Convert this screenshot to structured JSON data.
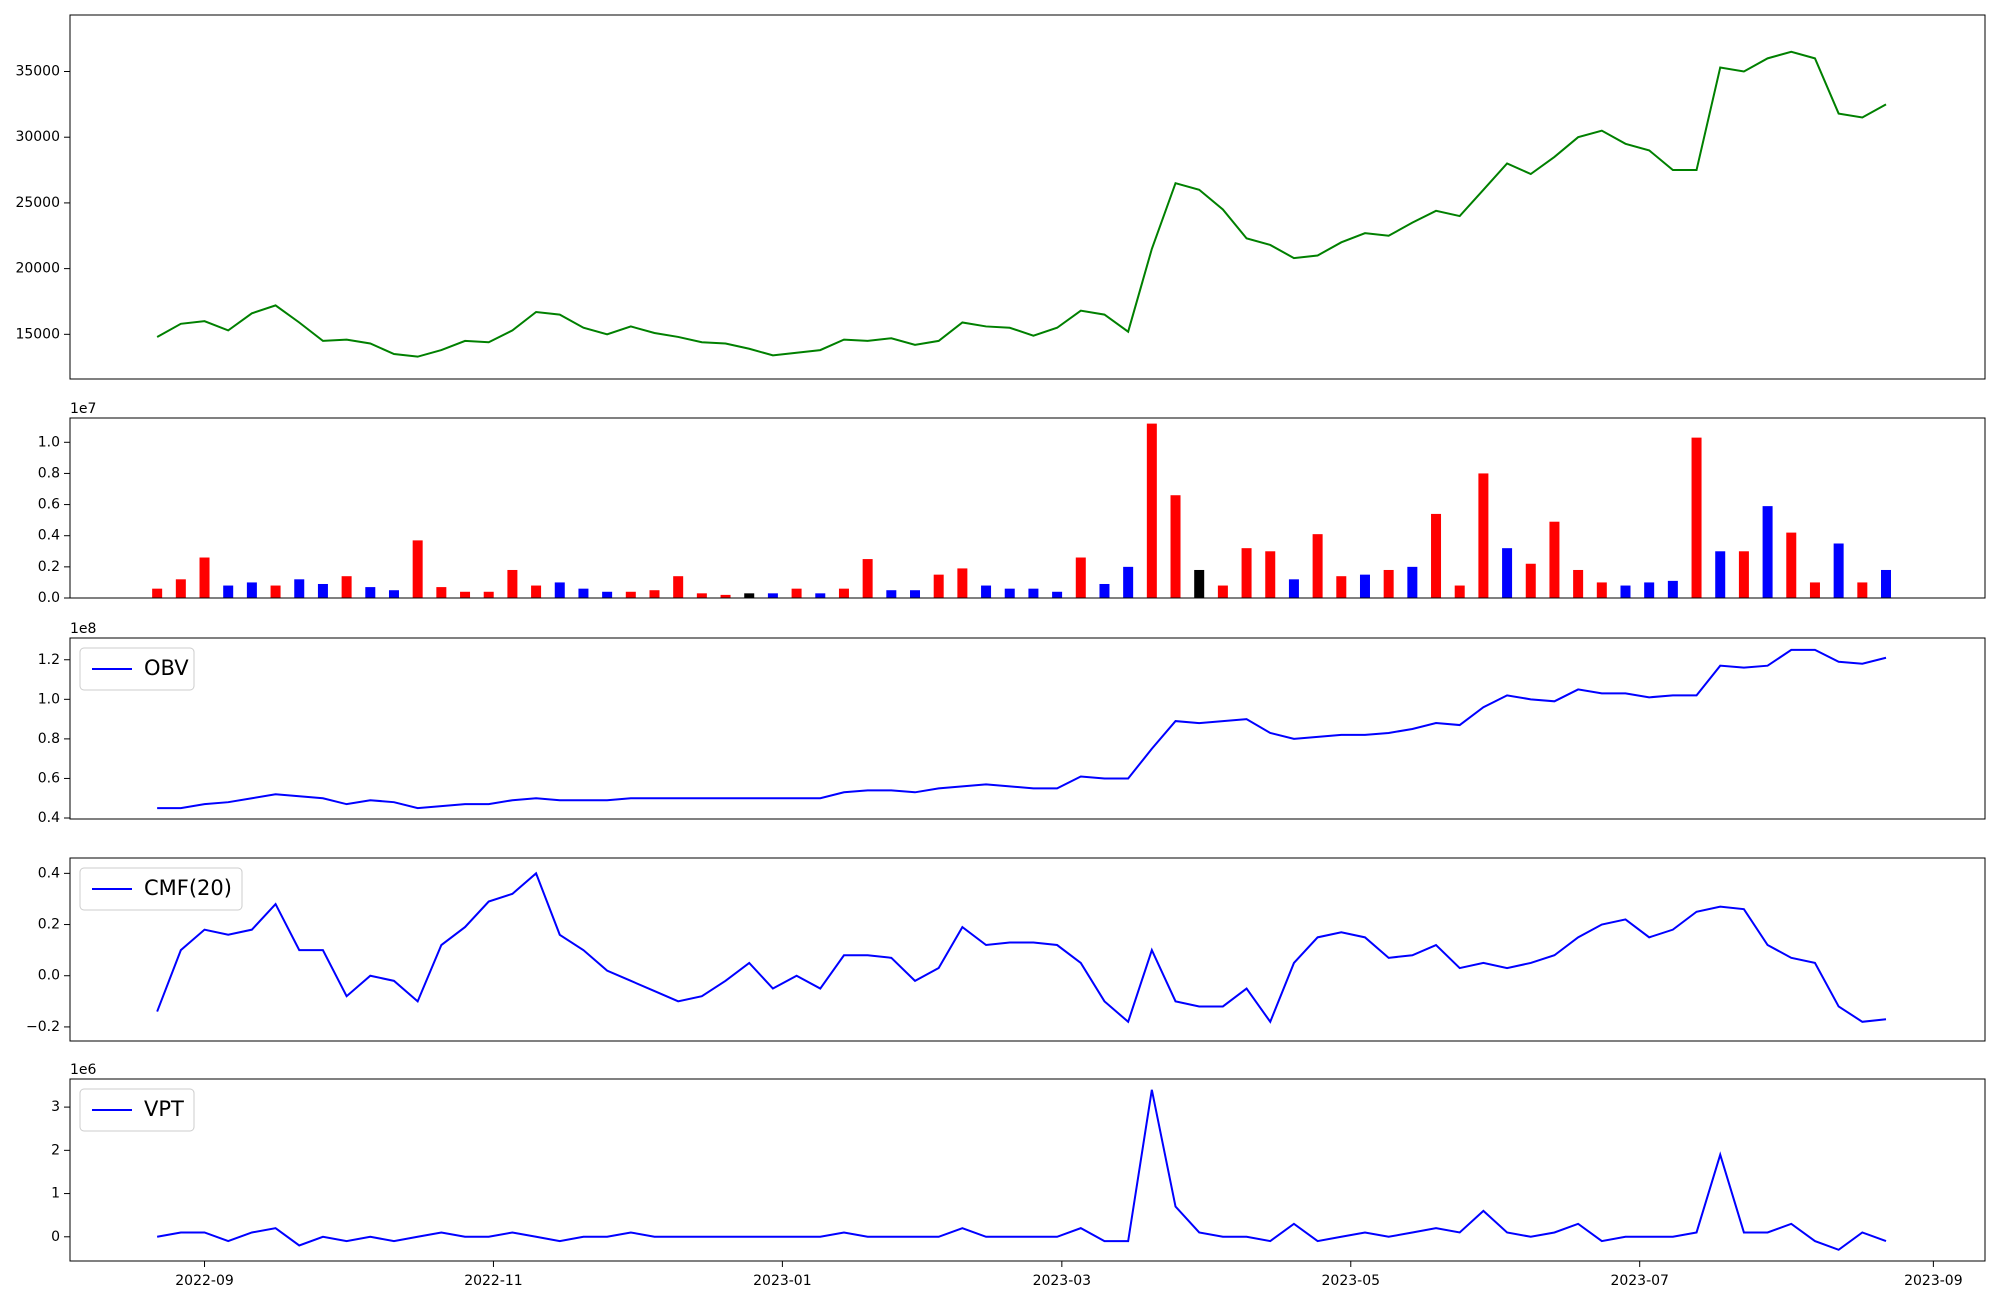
{
  "chart_data": [
    {
      "type": "line",
      "x": [
        19226,
        19231,
        19236,
        19241,
        19246,
        19251,
        19256,
        19261,
        19266,
        19271,
        19276,
        19281,
        19286,
        19291,
        19296,
        19301,
        19306,
        19311,
        19316,
        19321,
        19326,
        19331,
        19336,
        19341,
        19346,
        19351,
        19356,
        19361,
        19366,
        19371,
        19376,
        19381,
        19386,
        19391,
        19396,
        19401,
        19406,
        19411,
        19416,
        19421,
        19426,
        19431,
        19436,
        19441,
        19446,
        19451,
        19456,
        19461,
        19466,
        19471,
        19476,
        19481,
        19486,
        19491,
        19496,
        19501,
        19506,
        19511,
        19516,
        19521,
        19526,
        19531,
        19536,
        19541,
        19546,
        19551,
        19556,
        19561,
        19566,
        19571,
        19576,
        19581,
        19586,
        19591
      ],
      "values": [
        14800,
        15800,
        16000,
        15300,
        16600,
        17200,
        15900,
        14500,
        14600,
        14300,
        13500,
        13300,
        13800,
        14500,
        14400,
        15300,
        16700,
        16500,
        15500,
        15000,
        15600,
        15100,
        14800,
        14400,
        14300,
        13900,
        13400,
        13600,
        13800,
        14600,
        14500,
        14700,
        14200,
        14500,
        15900,
        15600,
        15500,
        14900,
        15500,
        16800,
        16500,
        15200,
        21500,
        26500,
        26000,
        24500,
        22300,
        21800,
        20800,
        21000,
        22000,
        22700,
        22500,
        23500,
        24400,
        24000,
        26000,
        28000,
        27200,
        28500,
        30000,
        30500,
        29500,
        29000,
        27500,
        27500,
        35300,
        35000,
        36000,
        36500,
        36000,
        31800,
        31500,
        32500
      ],
      "color": "green",
      "xlim": [
        19207.6,
        19611.9
      ],
      "ylim": [
        11600,
        39300
      ],
      "yticks": [
        15000,
        20000,
        25000,
        30000,
        35000
      ]
    },
    {
      "type": "bar",
      "x": [
        19226,
        19231,
        19236,
        19241,
        19246,
        19251,
        19256,
        19261,
        19266,
        19271,
        19276,
        19281,
        19286,
        19291,
        19296,
        19301,
        19306,
        19311,
        19316,
        19321,
        19326,
        19331,
        19336,
        19341,
        19346,
        19351,
        19356,
        19361,
        19366,
        19371,
        19376,
        19381,
        19386,
        19391,
        19396,
        19401,
        19406,
        19411,
        19416,
        19421,
        19426,
        19431,
        19436,
        19441,
        19446,
        19451,
        19456,
        19461,
        19466,
        19471,
        19476,
        19481,
        19486,
        19491,
        19496,
        19501,
        19506,
        19511,
        19516,
        19521,
        19526,
        19531,
        19536,
        19541,
        19546,
        19551,
        19556,
        19561,
        19566,
        19571,
        19576,
        19581,
        19586,
        19591
      ],
      "values": [
        600000,
        1200000,
        2600000,
        800000,
        1000000,
        800000,
        1200000,
        900000,
        1400000,
        700000,
        500000,
        3700000,
        700000,
        400000,
        400000,
        1800000,
        800000,
        1000000,
        600000,
        400000,
        400000,
        500000,
        1400000,
        300000,
        200000,
        300000,
        300000,
        600000,
        300000,
        600000,
        2500000,
        500000,
        500000,
        1500000,
        1900000,
        800000,
        600000,
        600000,
        400000,
        2600000,
        900000,
        2000000,
        11200000,
        6600000,
        1800000,
        800000,
        3200000,
        3000000,
        1200000,
        4100000,
        1400000,
        1500000,
        1800000,
        2000000,
        5400000,
        800000,
        8000000,
        3200000,
        2200000,
        4900000,
        1800000,
        1000000,
        800000,
        1000000,
        1100000,
        10300000,
        3000000,
        3000000,
        5900000,
        4200000,
        1000000,
        3500000,
        1000000,
        1800000
      ],
      "colors": [
        "red",
        "red",
        "red",
        "blue",
        "blue",
        "red",
        "blue",
        "blue",
        "red",
        "blue",
        "blue",
        "red",
        "red",
        "red",
        "red",
        "red",
        "red",
        "blue",
        "blue",
        "blue",
        "red",
        "red",
        "red",
        "red",
        "red",
        "black",
        "blue",
        "red",
        "blue",
        "red",
        "red",
        "blue",
        "blue",
        "red",
        "red",
        "blue",
        "blue",
        "blue",
        "blue",
        "red",
        "blue",
        "blue",
        "red",
        "red",
        "black",
        "red",
        "red",
        "red",
        "blue",
        "red",
        "red",
        "blue",
        "red",
        "blue",
        "red",
        "red",
        "red",
        "blue",
        "red",
        "red",
        "red",
        "red",
        "blue",
        "blue",
        "blue",
        "red",
        "blue",
        "red",
        "blue",
        "red",
        "red",
        "blue",
        "red",
        "blue"
      ],
      "offset_label": "1e7",
      "xlim": [
        19207.6,
        19611.9
      ],
      "ylim": [
        0,
        11560000
      ],
      "yticks": [
        {
          "value": 0,
          "label": "0.0"
        },
        {
          "value": 2000000,
          "label": "0.2"
        },
        {
          "value": 4000000,
          "label": "0.4"
        },
        {
          "value": 6000000,
          "label": "0.6"
        },
        {
          "value": 8000000,
          "label": "0.8"
        },
        {
          "value": 10000000,
          "label": "1.0"
        }
      ]
    },
    {
      "type": "line",
      "x": [
        19226,
        19231,
        19236,
        19241,
        19246,
        19251,
        19256,
        19261,
        19266,
        19271,
        19276,
        19281,
        19286,
        19291,
        19296,
        19301,
        19306,
        19311,
        19316,
        19321,
        19326,
        19331,
        19336,
        19341,
        19346,
        19351,
        19356,
        19361,
        19366,
        19371,
        19376,
        19381,
        19386,
        19391,
        19396,
        19401,
        19406,
        19411,
        19416,
        19421,
        19426,
        19431,
        19436,
        19441,
        19446,
        19451,
        19456,
        19461,
        19466,
        19471,
        19476,
        19481,
        19486,
        19491,
        19496,
        19501,
        19506,
        19511,
        19516,
        19521,
        19526,
        19531,
        19536,
        19541,
        19546,
        19551,
        19556,
        19561,
        19566,
        19571,
        19576,
        19581,
        19586,
        19591
      ],
      "series": [
        {
          "name": "OBV",
          "color": "blue",
          "values": [
            45000000,
            45000000,
            47000000,
            48000000,
            50000000,
            52000000,
            51000000,
            50000000,
            47000000,
            49000000,
            48000000,
            45000000,
            46000000,
            47000000,
            47000000,
            49000000,
            50000000,
            49000000,
            49000000,
            49000000,
            50000000,
            50000000,
            50000000,
            50000000,
            50000000,
            50000000,
            50000000,
            50000000,
            50000000,
            53000000,
            54000000,
            54000000,
            53000000,
            55000000,
            56000000,
            57000000,
            56000000,
            55000000,
            55000000,
            61000000,
            60000000,
            60000000,
            75000000,
            89000000,
            88000000,
            89000000,
            90000000,
            83000000,
            80000000,
            81000000,
            82000000,
            82000000,
            83000000,
            85000000,
            88000000,
            87000000,
            96000000,
            102000000,
            100000000,
            99000000,
            105000000,
            103000000,
            103000000,
            101000000,
            102000000,
            102000000,
            117000000,
            116000000,
            117000000,
            125000000,
            125000000,
            119000000,
            118000000,
            121000000
          ]
        }
      ],
      "legend": "upper left",
      "offset_label": "1e8",
      "xlim": [
        19207.6,
        19611.9
      ],
      "ylim": [
        39500000,
        131000000
      ],
      "yticks": [
        {
          "value": 40000000,
          "label": "0.4"
        },
        {
          "value": 60000000,
          "label": "0.6"
        },
        {
          "value": 80000000,
          "label": "0.8"
        },
        {
          "value": 100000000,
          "label": "1.0"
        },
        {
          "value": 120000000,
          "label": "1.2"
        }
      ]
    },
    {
      "type": "line",
      "x": [
        19226,
        19231,
        19236,
        19241,
        19246,
        19251,
        19256,
        19261,
        19266,
        19271,
        19276,
        19281,
        19286,
        19291,
        19296,
        19301,
        19306,
        19311,
        19316,
        19321,
        19326,
        19331,
        19336,
        19341,
        19346,
        19351,
        19356,
        19361,
        19366,
        19371,
        19376,
        19381,
        19386,
        19391,
        19396,
        19401,
        19406,
        19411,
        19416,
        19421,
        19426,
        19431,
        19436,
        19441,
        19446,
        19451,
        19456,
        19461,
        19466,
        19471,
        19476,
        19481,
        19486,
        19491,
        19496,
        19501,
        19506,
        19511,
        19516,
        19521,
        19526,
        19531,
        19536,
        19541,
        19546,
        19551,
        19556,
        19561,
        19566,
        19571,
        19576,
        19581,
        19586,
        19591
      ],
      "series": [
        {
          "name": "CMF(20)",
          "color": "blue",
          "values": [
            -0.14,
            0.1,
            0.18,
            0.16,
            0.18,
            0.28,
            0.1,
            0.1,
            -0.08,
            0.0,
            -0.02,
            -0.1,
            0.12,
            0.19,
            0.29,
            0.32,
            0.4,
            0.16,
            0.1,
            0.02,
            -0.02,
            -0.06,
            -0.1,
            -0.08,
            -0.02,
            0.05,
            -0.05,
            0.0,
            -0.05,
            0.08,
            0.08,
            0.07,
            -0.02,
            0.03,
            0.19,
            0.12,
            0.13,
            0.13,
            0.12,
            0.05,
            -0.1,
            -0.18,
            0.1,
            -0.1,
            -0.12,
            -0.12,
            -0.05,
            -0.18,
            0.05,
            0.15,
            0.17,
            0.15,
            0.07,
            0.08,
            0.12,
            0.03,
            0.05,
            0.03,
            0.05,
            0.08,
            0.15,
            0.2,
            0.22,
            0.15,
            0.18,
            0.25,
            0.27,
            0.26,
            0.12,
            0.07,
            0.05,
            -0.12,
            -0.18,
            -0.17
          ]
        }
      ],
      "legend": "upper left",
      "xlim": [
        19207.6,
        19611.9
      ],
      "ylim": [
        -0.255,
        0.46
      ],
      "yticks": [
        {
          "value": -0.2,
          "label": "−0.2"
        },
        {
          "value": 0,
          "label": "0.0"
        },
        {
          "value": 0.2,
          "label": "0.2"
        },
        {
          "value": 0.4,
          "label": "0.4"
        }
      ]
    },
    {
      "type": "line",
      "x": [
        19226,
        19231,
        19236,
        19241,
        19246,
        19251,
        19256,
        19261,
        19266,
        19271,
        19276,
        19281,
        19286,
        19291,
        19296,
        19301,
        19306,
        19311,
        19316,
        19321,
        19326,
        19331,
        19336,
        19341,
        19346,
        19351,
        19356,
        19361,
        19366,
        19371,
        19376,
        19381,
        19386,
        19391,
        19396,
        19401,
        19406,
        19411,
        19416,
        19421,
        19426,
        19431,
        19436,
        19441,
        19446,
        19451,
        19456,
        19461,
        19466,
        19471,
        19476,
        19481,
        19486,
        19491,
        19496,
        19501,
        19506,
        19511,
        19516,
        19521,
        19526,
        19531,
        19536,
        19541,
        19546,
        19551,
        19556,
        19561,
        19566,
        19571,
        19576,
        19581,
        19586,
        19591
      ],
      "series": [
        {
          "name": "VPT",
          "color": "blue",
          "values": [
            0,
            100000,
            100000,
            -100000,
            100000,
            200000,
            -200000,
            0,
            -100000,
            0,
            -100000,
            0,
            100000,
            0,
            0,
            100000,
            0,
            -100000,
            0,
            0,
            100000,
            0,
            0,
            0,
            0,
            0,
            0,
            0,
            0,
            100000,
            0,
            0,
            0,
            0,
            200000,
            0,
            0,
            0,
            0,
            200000,
            -100000,
            -100000,
            3400000,
            700000,
            100000,
            0,
            0,
            -100000,
            300000,
            -100000,
            0,
            100000,
            0,
            100000,
            200000,
            100000,
            600000,
            100000,
            0,
            100000,
            300000,
            -100000,
            0,
            0,
            0,
            100000,
            1900000,
            100000,
            100000,
            300000,
            -100000,
            -300000,
            100000,
            -100000
          ]
        }
      ],
      "legend": "upper left",
      "offset_label": "1e6",
      "xlim": [
        19207.6,
        19611.9
      ],
      "ylim": [
        -560000,
        3650000
      ],
      "yticks": [
        {
          "value": 0,
          "label": "0"
        },
        {
          "value": 1000000,
          "label": "1"
        },
        {
          "value": 2000000,
          "label": "2"
        },
        {
          "value": 3000000,
          "label": "3"
        }
      ],
      "xticks": [
        {
          "value": 19236,
          "label": "2022-09"
        },
        {
          "value": 19297,
          "label": "2022-11"
        },
        {
          "value": 19358,
          "label": "2023-01"
        },
        {
          "value": 19417,
          "label": "2023-03"
        },
        {
          "value": 19478,
          "label": "2023-05"
        },
        {
          "value": 19539,
          "label": "2023-07"
        },
        {
          "value": 19601,
          "label": "2023-09"
        }
      ]
    }
  ]
}
